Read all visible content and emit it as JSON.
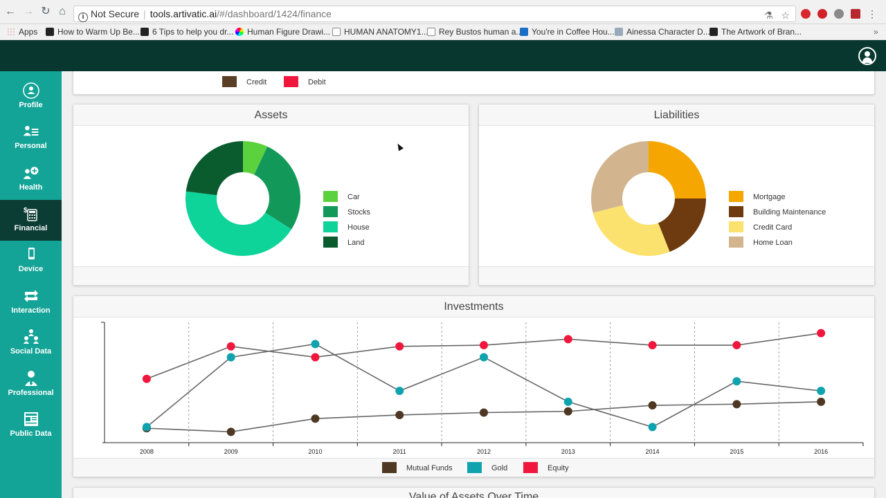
{
  "browser": {
    "url_prefix": "Not Secure",
    "url_host": "tools.artivatic.ai",
    "url_path": "/#/dashboard/1424/finance",
    "bookmarks": [
      {
        "label": "Apps"
      },
      {
        "label": "How to Warm Up Be..."
      },
      {
        "label": "6 Tips to help you dr..."
      },
      {
        "label": "Human Figure Drawi..."
      },
      {
        "label": "HUMAN ANATOMY1..."
      },
      {
        "label": "Rey Bustos human a..."
      },
      {
        "label": "You're in Coffee Hou..."
      },
      {
        "label": "Ainessa Character D..."
      },
      {
        "label": "The Artwork of Bran..."
      }
    ]
  },
  "sidebar": {
    "items": [
      {
        "label": "Profile"
      },
      {
        "label": "Personal"
      },
      {
        "label": "Health"
      },
      {
        "label": "Financial"
      },
      {
        "label": "Device"
      },
      {
        "label": "Interaction"
      },
      {
        "label": "Social Data"
      },
      {
        "label": "Professional"
      },
      {
        "label": "Public Data"
      }
    ],
    "active": "Financial"
  },
  "top_legend": {
    "items": [
      {
        "label": "Credit",
        "color": "#5a3e25"
      },
      {
        "label": "Debit",
        "color": "#f0173d"
      }
    ]
  },
  "assets": {
    "title": "Assets",
    "legend": [
      {
        "label": "Car",
        "color": "#5cd13e"
      },
      {
        "label": "Stocks",
        "color": "#12995a"
      },
      {
        "label": "House",
        "color": "#0fd49a"
      },
      {
        "label": "Land",
        "color": "#0a5c2f"
      }
    ]
  },
  "liabilities": {
    "title": "Liabilities",
    "legend": [
      {
        "label": "Mortgage",
        "color": "#f5a600"
      },
      {
        "label": "Building Maintenance",
        "color": "#6e3a10"
      },
      {
        "label": "Credit Card",
        "color": "#fbe16e"
      },
      {
        "label": "Home Loan",
        "color": "#d2b48f"
      }
    ]
  },
  "investments": {
    "title": "Investments",
    "legend": [
      {
        "label": "Mutual Funds",
        "color": "#4e3823"
      },
      {
        "label": "Gold",
        "color": "#0ea3af"
      },
      {
        "label": "Equity",
        "color": "#f0173d"
      }
    ]
  },
  "next_panel_title": "Value of Assets Over Time",
  "chart_data": [
    {
      "type": "pie",
      "title": "Assets",
      "categories": [
        "Car",
        "Stocks",
        "House",
        "Land"
      ],
      "values": [
        7,
        27,
        43,
        23
      ],
      "colors": [
        "#5cd13e",
        "#12995a",
        "#0fd49a",
        "#0a5c2f"
      ]
    },
    {
      "type": "pie",
      "title": "Liabilities",
      "categories": [
        "Mortgage",
        "Building Maintenance",
        "Credit Card",
        "Home Loan"
      ],
      "values": [
        25,
        19,
        27,
        29
      ],
      "colors": [
        "#f5a600",
        "#6e3a10",
        "#fbe16e",
        "#d2b48f"
      ]
    },
    {
      "type": "line",
      "title": "Investments",
      "categories": [
        "2008",
        "2009",
        "2010",
        "2011",
        "2012",
        "2013",
        "2014",
        "2015",
        "2016"
      ],
      "ylim": [
        0,
        100
      ],
      "grid": true,
      "series": [
        {
          "name": "Mutual Funds",
          "color": "#4e3823",
          "values": [
            12,
            9,
            20,
            23,
            25,
            26,
            31,
            32,
            34
          ]
        },
        {
          "name": "Gold",
          "color": "#0ea3af",
          "values": [
            13,
            71,
            82,
            43,
            71,
            34,
            13,
            51,
            43
          ]
        },
        {
          "name": "Equity",
          "color": "#f0173d",
          "values": [
            53,
            80,
            71,
            80,
            81,
            86,
            81,
            81,
            91
          ]
        }
      ]
    }
  ]
}
